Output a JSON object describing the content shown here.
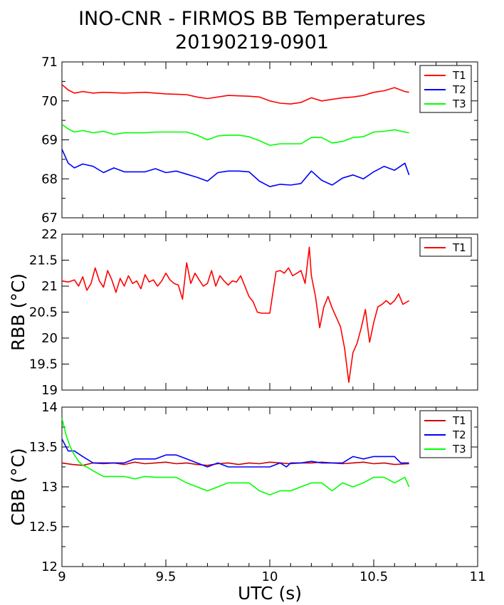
{
  "title_line1": "INO-CNR - FIRMOS BB Temperatures",
  "title_line2": "20190219-0901",
  "chart_data": [
    {
      "type": "line",
      "title": "",
      "xlabel": "",
      "ylabel": "",
      "xlim": [
        9,
        11
      ],
      "ylim": [
        67,
        71
      ],
      "yticks": [
        "67",
        "68",
        "69",
        "70",
        "71"
      ],
      "legend": "top-right",
      "series": [
        {
          "name": "T1",
          "color": "#ff0000",
          "x": [
            9.0,
            9.03,
            9.06,
            9.1,
            9.15,
            9.2,
            9.3,
            9.4,
            9.5,
            9.6,
            9.65,
            9.7,
            9.8,
            9.9,
            9.95,
            10.0,
            10.05,
            10.1,
            10.15,
            10.2,
            10.25,
            10.3,
            10.35,
            10.4,
            10.45,
            10.5,
            10.55,
            10.6,
            10.65,
            10.67
          ],
          "values": [
            70.42,
            70.28,
            70.2,
            70.24,
            70.2,
            70.22,
            70.2,
            70.22,
            70.18,
            70.16,
            70.1,
            70.06,
            70.14,
            70.12,
            70.1,
            70.0,
            69.94,
            69.92,
            69.96,
            70.08,
            70.0,
            70.04,
            70.08,
            70.1,
            70.14,
            70.22,
            70.26,
            70.34,
            70.24,
            70.22
          ]
        },
        {
          "name": "T2",
          "color": "#0000ff",
          "x": [
            9.0,
            9.03,
            9.06,
            9.1,
            9.15,
            9.2,
            9.25,
            9.3,
            9.4,
            9.45,
            9.5,
            9.55,
            9.6,
            9.65,
            9.7,
            9.75,
            9.8,
            9.85,
            9.9,
            9.95,
            10.0,
            10.05,
            10.1,
            10.15,
            10.2,
            10.25,
            10.3,
            10.35,
            10.4,
            10.45,
            10.5,
            10.55,
            10.6,
            10.65,
            10.67
          ],
          "values": [
            68.76,
            68.4,
            68.28,
            68.38,
            68.32,
            68.16,
            68.28,
            68.18,
            68.18,
            68.26,
            68.16,
            68.2,
            68.12,
            68.04,
            67.94,
            68.16,
            68.2,
            68.2,
            68.18,
            67.94,
            67.8,
            67.86,
            67.84,
            67.88,
            68.2,
            67.96,
            67.84,
            68.02,
            68.1,
            68.0,
            68.18,
            68.32,
            68.22,
            68.4,
            68.1
          ]
        },
        {
          "name": "T3",
          "color": "#00ff00",
          "x": [
            9.0,
            9.03,
            9.06,
            9.1,
            9.15,
            9.2,
            9.25,
            9.3,
            9.4,
            9.45,
            9.5,
            9.55,
            9.6,
            9.65,
            9.7,
            9.75,
            9.8,
            9.85,
            9.9,
            9.95,
            10.0,
            10.05,
            10.1,
            10.15,
            10.2,
            10.25,
            10.3,
            10.35,
            10.4,
            10.45,
            10.5,
            10.55,
            10.6,
            10.65,
            10.67
          ],
          "values": [
            69.4,
            69.28,
            69.2,
            69.24,
            69.18,
            69.22,
            69.14,
            69.18,
            69.18,
            69.2,
            69.2,
            69.2,
            69.2,
            69.12,
            69.0,
            69.1,
            69.12,
            69.12,
            69.08,
            68.98,
            68.86,
            68.9,
            68.9,
            68.9,
            69.06,
            69.06,
            68.92,
            68.96,
            69.06,
            69.08,
            69.2,
            69.22,
            69.26,
            69.2,
            69.18
          ]
        }
      ]
    },
    {
      "type": "line",
      "title": "",
      "xlabel": "",
      "ylabel": "RBB (°C)",
      "xlim": [
        9,
        11
      ],
      "ylim": [
        19,
        22
      ],
      "yticks": [
        "19",
        "19.5",
        "20",
        "20.5",
        "21",
        "21.5",
        "22"
      ],
      "legend": "top-right",
      "series": [
        {
          "name": "T1",
          "color": "#ff0000",
          "x": [
            9.0,
            9.03,
            9.06,
            9.08,
            9.1,
            9.12,
            9.14,
            9.16,
            9.18,
            9.2,
            9.22,
            9.24,
            9.26,
            9.28,
            9.3,
            9.32,
            9.34,
            9.36,
            9.38,
            9.4,
            9.42,
            9.44,
            9.46,
            9.48,
            9.5,
            9.52,
            9.54,
            9.56,
            9.58,
            9.6,
            9.62,
            9.64,
            9.66,
            9.68,
            9.7,
            9.72,
            9.74,
            9.76,
            9.78,
            9.8,
            9.82,
            9.84,
            9.86,
            9.88,
            9.9,
            9.92,
            9.94,
            9.96,
            10.0,
            10.03,
            10.05,
            10.07,
            10.09,
            10.11,
            10.13,
            10.15,
            10.17,
            10.19,
            10.2,
            10.22,
            10.24,
            10.26,
            10.28,
            10.3,
            10.32,
            10.34,
            10.36,
            10.38,
            10.4,
            10.42,
            10.44,
            10.46,
            10.48,
            10.5,
            10.52,
            10.54,
            10.56,
            10.58,
            10.6,
            10.62,
            10.64,
            10.67
          ],
          "values": [
            21.1,
            21.08,
            21.12,
            21.0,
            21.18,
            20.92,
            21.05,
            21.35,
            21.1,
            20.98,
            21.3,
            21.12,
            20.88,
            21.15,
            21.0,
            21.2,
            21.05,
            21.1,
            20.95,
            21.22,
            21.08,
            21.12,
            21.0,
            21.1,
            21.25,
            21.12,
            21.05,
            21.02,
            20.75,
            21.45,
            21.05,
            21.25,
            21.12,
            21.0,
            21.05,
            21.3,
            21.0,
            21.2,
            21.1,
            21.02,
            21.1,
            21.08,
            21.2,
            21.0,
            20.8,
            20.7,
            20.5,
            20.48,
            20.48,
            21.28,
            21.3,
            21.25,
            21.35,
            21.2,
            21.25,
            21.3,
            21.05,
            21.75,
            21.2,
            20.8,
            20.2,
            20.6,
            20.8,
            20.58,
            20.4,
            20.22,
            19.8,
            19.15,
            19.72,
            19.9,
            20.2,
            20.55,
            19.92,
            20.3,
            20.6,
            20.65,
            20.72,
            20.65,
            20.72,
            20.85,
            20.65,
            20.72
          ]
        }
      ]
    },
    {
      "type": "line",
      "title": "",
      "xlabel": "UTC (s)",
      "ylabel": "CBB (°C)",
      "xlim": [
        9,
        11
      ],
      "ylim": [
        12,
        14
      ],
      "yticks": [
        "12",
        "12.5",
        "13",
        "13.5",
        "14"
      ],
      "xticks": [
        "9",
        "9.5",
        "10",
        "10.5",
        "11"
      ],
      "legend": "top-right",
      "series": [
        {
          "name": "T1",
          "color": "#cc0000",
          "x": [
            9.0,
            9.05,
            9.1,
            9.15,
            9.2,
            9.25,
            9.3,
            9.35,
            9.4,
            9.45,
            9.5,
            9.55,
            9.6,
            9.65,
            9.7,
            9.75,
            9.8,
            9.85,
            9.9,
            9.95,
            10.0,
            10.05,
            10.1,
            10.15,
            10.2,
            10.25,
            10.3,
            10.35,
            10.4,
            10.45,
            10.5,
            10.55,
            10.6,
            10.67
          ],
          "values": [
            13.3,
            13.28,
            13.27,
            13.3,
            13.29,
            13.3,
            13.28,
            13.31,
            13.29,
            13.3,
            13.31,
            13.29,
            13.3,
            13.28,
            13.27,
            13.29,
            13.3,
            13.28,
            13.3,
            13.29,
            13.31,
            13.3,
            13.29,
            13.3,
            13.3,
            13.31,
            13.3,
            13.29,
            13.3,
            13.31,
            13.29,
            13.3,
            13.28,
            13.29
          ]
        },
        {
          "name": "T2",
          "color": "#0000ff",
          "x": [
            9.0,
            9.03,
            9.06,
            9.1,
            9.15,
            9.2,
            9.25,
            9.3,
            9.35,
            9.4,
            9.45,
            9.5,
            9.55,
            9.6,
            9.65,
            9.7,
            9.75,
            9.8,
            9.85,
            9.9,
            9.95,
            10.0,
            10.05,
            10.08,
            10.1,
            10.15,
            10.2,
            10.25,
            10.3,
            10.35,
            10.4,
            10.45,
            10.5,
            10.55,
            10.6,
            10.63,
            10.67
          ],
          "values": [
            13.6,
            13.45,
            13.45,
            13.38,
            13.3,
            13.3,
            13.3,
            13.3,
            13.35,
            13.35,
            13.35,
            13.4,
            13.4,
            13.35,
            13.3,
            13.25,
            13.3,
            13.25,
            13.25,
            13.25,
            13.25,
            13.25,
            13.3,
            13.25,
            13.3,
            13.3,
            13.32,
            13.3,
            13.3,
            13.3,
            13.38,
            13.35,
            13.38,
            13.38,
            13.38,
            13.3,
            13.3
          ]
        },
        {
          "name": "T3",
          "color": "#00ff00",
          "x": [
            9.0,
            9.02,
            9.04,
            9.06,
            9.08,
            9.1,
            9.12,
            9.15,
            9.2,
            9.25,
            9.3,
            9.35,
            9.4,
            9.45,
            9.5,
            9.55,
            9.6,
            9.65,
            9.7,
            9.75,
            9.8,
            9.85,
            9.9,
            9.95,
            10.0,
            10.05,
            10.1,
            10.15,
            10.2,
            10.25,
            10.3,
            10.35,
            10.4,
            10.45,
            10.5,
            10.55,
            10.6,
            10.65,
            10.67
          ],
          "values": [
            13.86,
            13.65,
            13.5,
            13.4,
            13.32,
            13.27,
            13.25,
            13.2,
            13.13,
            13.13,
            13.13,
            13.1,
            13.13,
            13.12,
            13.12,
            13.12,
            13.05,
            13.0,
            12.95,
            13.0,
            13.05,
            13.05,
            13.05,
            12.95,
            12.9,
            12.95,
            12.95,
            13.0,
            13.05,
            13.05,
            12.95,
            13.05,
            13.0,
            13.05,
            13.12,
            13.12,
            13.05,
            13.12,
            13.0
          ]
        }
      ]
    }
  ]
}
